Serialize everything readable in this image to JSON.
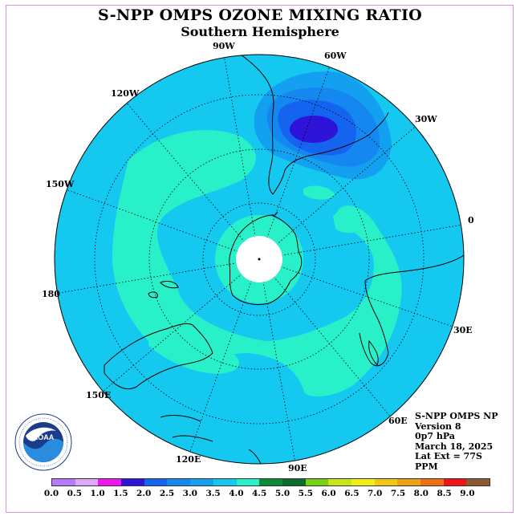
{
  "title": "S-NPP OMPS OZONE MIXING RATIO",
  "subtitle": "Southern Hemisphere",
  "longitude_labels": [
    "90W",
    "60W",
    "120W",
    "30W",
    "150W",
    "0",
    "180",
    "30E",
    "150E",
    "60E",
    "120E",
    "90E"
  ],
  "info": {
    "line1": "S-NPP OMPS NP",
    "line2": "Version 8",
    "line3": "0p7 hPa",
    "line4": "March 18, 2025",
    "line5": "Lat Ext = 77S",
    "line6": "PPM"
  },
  "logo": {
    "name": "NOAA",
    "ring_text": "NATIONAL OCEANIC AND ATMOSPHERIC ADMINISTRATION · U.S. DEPARTMENT OF COMMERCE"
  },
  "colorbar": {
    "colors": [
      "#b77aff",
      "#dcaaf8",
      "#f016f0",
      "#2d14d8",
      "#1464f0",
      "#1488f0",
      "#14a0f0",
      "#14c8f0",
      "#28f0c8",
      "#0c8a36",
      "#0a6e2a",
      "#78d214",
      "#c8e614",
      "#f0f014",
      "#f0c814",
      "#f0a014",
      "#f06e14",
      "#f01414",
      "#8c5a32"
    ],
    "tick_labels": [
      "0.0",
      "0.5",
      "1.0",
      "1.5",
      "2.0",
      "2.5",
      "3.0",
      "3.5",
      "4.0",
      "4.5",
      "5.0",
      "5.5",
      "6.0",
      "6.5",
      "7.0",
      "7.5",
      "8.0",
      "8.5",
      "9.0"
    ]
  },
  "map": {
    "projection": "polar stereographic, south pole centered",
    "field_colors": {
      "background_3_0_3_5": "#14c8f0",
      "band_3_5_4_0": "#28f0c8",
      "level_2_5_3_0": "#14a0f0",
      "level_2_0_2_5": "#1488f0",
      "level_1_5_2_0": "#1464f0",
      "core_1_5": "#2d14d8"
    },
    "polar_cap": "#ffffff"
  }
}
